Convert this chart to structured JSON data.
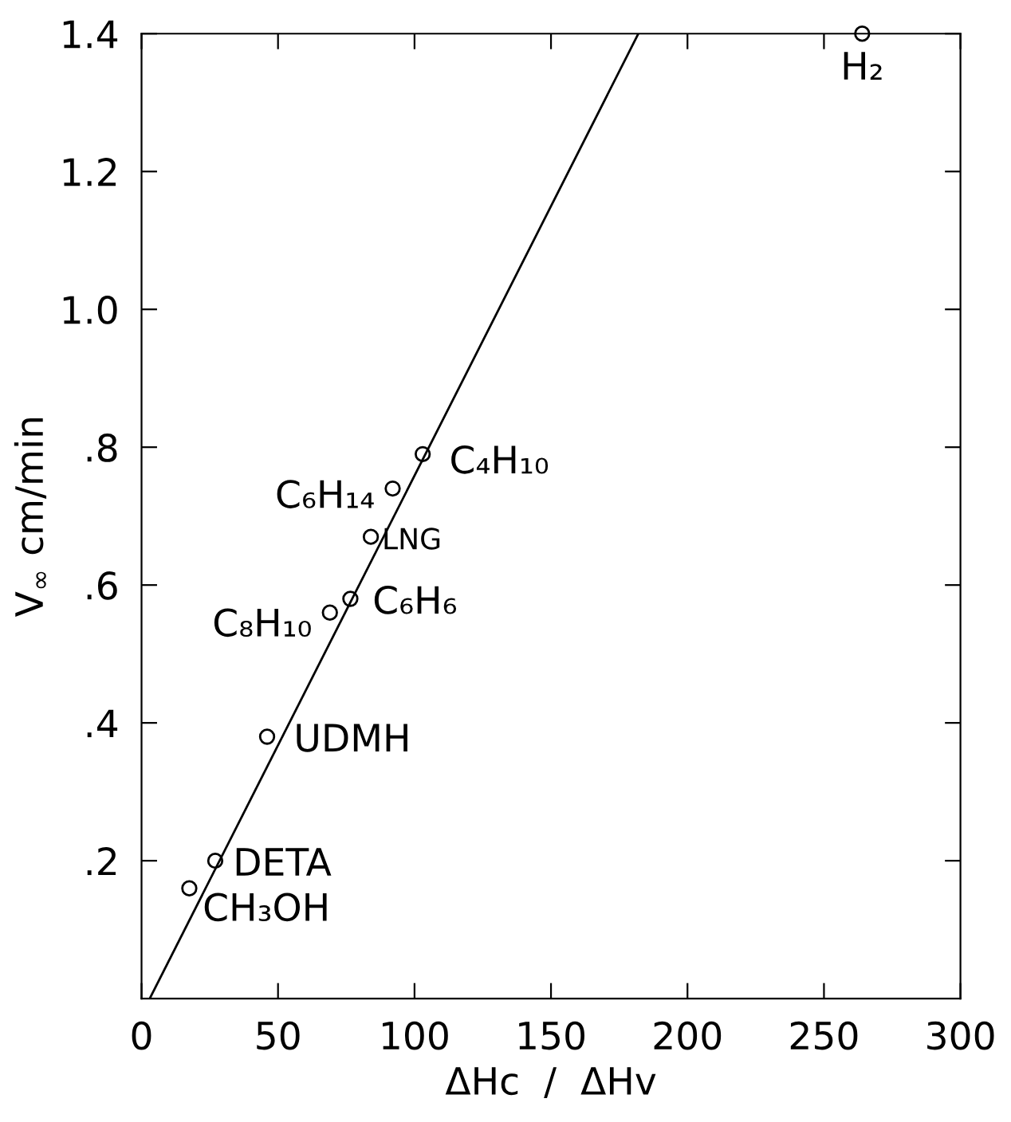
{
  "chart_data": {
    "type": "scatter",
    "xlabel": "ΔHc  /  ΔHv",
    "ylabel": "V$_{∞}$ cm/min",
    "xlim": [
      0,
      300
    ],
    "xticks": [
      0,
      50,
      100,
      150,
      200,
      250,
      300
    ],
    "ylim": [
      0,
      1.4
    ],
    "yticks": [
      {
        "value": 0.2,
        "label": ".2"
      },
      {
        "value": 0.4,
        "label": ".4"
      },
      {
        "value": 0.6,
        "label": ".6"
      },
      {
        "value": 0.8,
        "label": ".8"
      },
      {
        "value": 1.0,
        "label": "1.0"
      },
      {
        "value": 1.2,
        "label": "1.2"
      },
      {
        "value": 1.4,
        "label": "1.4"
      }
    ],
    "grid": false,
    "marker": "circle",
    "series": [
      {
        "color": "#000000",
        "x": [
          264,
          103,
          92,
          84,
          76.5,
          69,
          46,
          27,
          17.5
        ],
        "values": [
          1.4,
          0.79,
          0.74,
          0.67,
          0.58,
          0.56,
          0.38,
          0.2,
          0.16
        ]
      },
      {
        "type": "line",
        "color": "#000000",
        "line_style": "solid",
        "marker": "none",
        "x": [
          3,
          182
        ],
        "values": [
          0,
          1.4
        ]
      }
    ],
    "annotations": [
      {
        "text": "H₂",
        "x": 264,
        "y": 1.4
      },
      {
        "text": "C₄H₁₀",
        "x": 103,
        "y": 0.79
      },
      {
        "text": "C₆H₁₄",
        "x": 92,
        "y": 0.74
      },
      {
        "text": "LNG",
        "x": 84,
        "y": 0.67
      },
      {
        "text": "C₆H₆",
        "x": 76.5,
        "y": 0.58
      },
      {
        "text": "C₈H₁₀",
        "x": 69,
        "y": 0.56
      },
      {
        "text": "UDMH",
        "x": 46,
        "y": 0.38
      },
      {
        "text": "DETA",
        "x": 27,
        "y": 0.2
      },
      {
        "text": "CH₃OH",
        "x": 17.5,
        "y": 0.16
      }
    ]
  }
}
